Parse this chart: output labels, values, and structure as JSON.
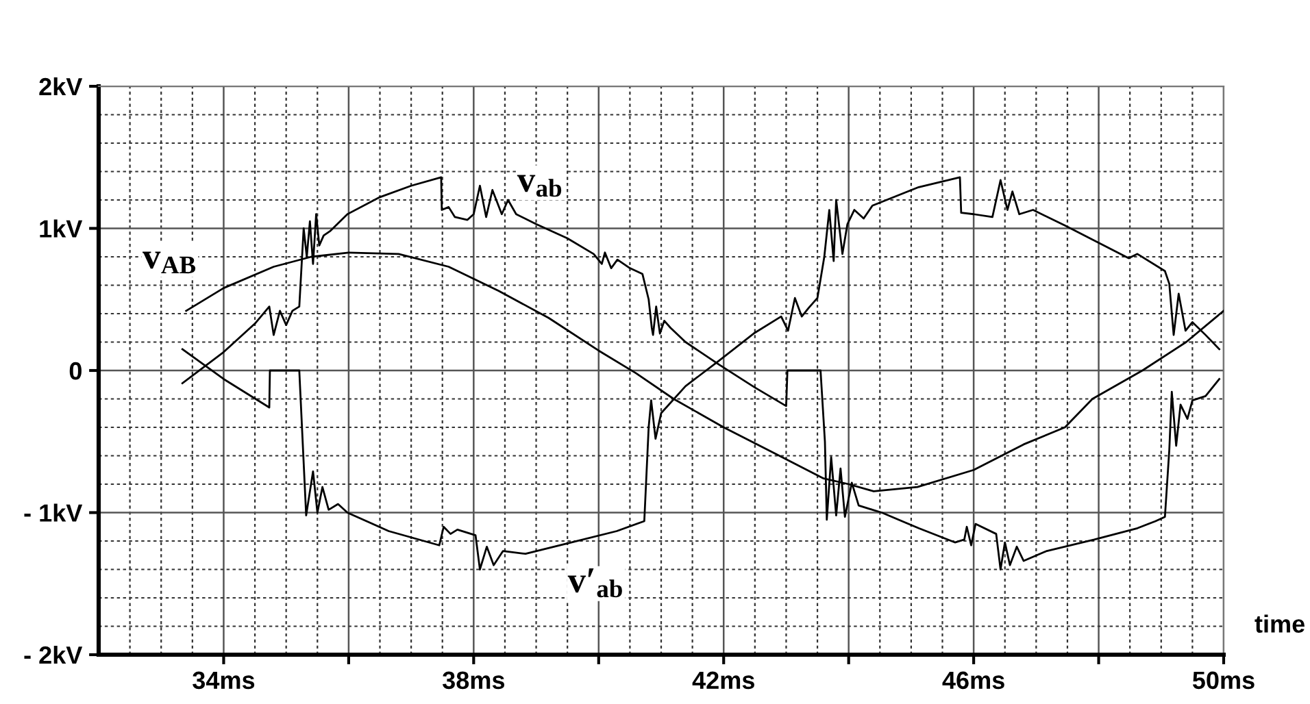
{
  "chart_data": {
    "type": "line",
    "xlabel": "time",
    "xlim": [
      32,
      50
    ],
    "ylim": [
      -2,
      2
    ],
    "xticks": [
      {
        "value": 34,
        "label": "34ms"
      },
      {
        "value": 36,
        "label": null
      },
      {
        "value": 38,
        "label": "38ms"
      },
      {
        "value": 40,
        "label": null
      },
      {
        "value": 42,
        "label": "42ms"
      },
      {
        "value": 44,
        "label": null
      },
      {
        "value": 46,
        "label": "46ms"
      },
      {
        "value": 48,
        "label": null
      },
      {
        "value": 50,
        "label": "50ms"
      }
    ],
    "yticks": [
      {
        "value": -2,
        "label": "- 2kV"
      },
      {
        "value": -1,
        "label": "- 1kV"
      },
      {
        "value": 0,
        "label": "0"
      },
      {
        "value": 1,
        "label": "1kV"
      },
      {
        "value": 2,
        "label": "2kV"
      }
    ],
    "grid": true,
    "marker": "none",
    "line_style": "solid",
    "series": [
      {
        "name": "v$_{AB}$",
        "color": "#000000",
        "x": [
          33.4,
          34.0,
          34.8,
          35.4,
          36.0,
          36.8,
          37.6,
          38.4,
          39.2,
          40.0,
          40.6,
          41.2,
          42.0,
          42.8,
          43.6,
          44.0,
          44.4,
          45.1,
          46.0,
          46.8,
          47.46,
          47.9,
          48.7,
          49.4,
          50.0
        ],
        "values": [
          0.42,
          0.58,
          0.73,
          0.8,
          0.83,
          0.82,
          0.73,
          0.56,
          0.37,
          0.14,
          -0.02,
          -0.2,
          -0.4,
          -0.58,
          -0.76,
          -0.8,
          -0.85,
          -0.82,
          -0.7,
          -0.52,
          -0.4,
          -0.2,
          0.0,
          0.2,
          0.42
        ]
      },
      {
        "name": "v$_{ab}$",
        "color": "#000000",
        "x": [
          33.34,
          34.0,
          34.5,
          34.73,
          34.8,
          34.9,
          35.0,
          35.1,
          35.21,
          35.28,
          35.33,
          35.38,
          35.43,
          35.48,
          35.53,
          35.6,
          35.7,
          35.98,
          36.5,
          37.0,
          37.48,
          37.49,
          37.6,
          37.7,
          37.9,
          38.0,
          38.1,
          38.2,
          38.3,
          38.45,
          38.55,
          38.68,
          39.0,
          39.5,
          39.92,
          40.05,
          40.1,
          40.2,
          40.3,
          40.5,
          40.7,
          40.8,
          40.85,
          40.87,
          40.92,
          40.98,
          41.05,
          41.15,
          41.39,
          41.93,
          42.5,
          43.0,
          43.02,
          43.55,
          43.62,
          43.65,
          43.72,
          43.8,
          43.87,
          43.94,
          44.05,
          44.16,
          44.38,
          44.53,
          45.12,
          45.7,
          45.85,
          45.89,
          45.96,
          46.03,
          46.36,
          46.43,
          46.5,
          46.58,
          46.69,
          46.8,
          47.17,
          47.93,
          48.62,
          48.91,
          49.06,
          49.13,
          49.17,
          49.24,
          49.31,
          49.42,
          49.5,
          49.71,
          49.93
        ],
        "values": [
          -0.09,
          0.13,
          0.33,
          0.45,
          0.25,
          0.42,
          0.32,
          0.42,
          0.45,
          1.0,
          0.8,
          1.05,
          0.75,
          1.1,
          0.88,
          0.95,
          0.98,
          1.1,
          1.22,
          1.3,
          1.36,
          1.13,
          1.15,
          1.08,
          1.06,
          1.1,
          1.3,
          1.08,
          1.27,
          1.1,
          1.2,
          1.1,
          1.03,
          0.93,
          0.82,
          0.75,
          0.83,
          0.72,
          0.78,
          0.72,
          0.68,
          0.5,
          0.3,
          0.25,
          0.45,
          0.26,
          0.35,
          0.3,
          0.2,
          0.04,
          -0.12,
          -0.25,
          0.0,
          0.0,
          -0.5,
          -1.05,
          -0.61,
          -1.02,
          -0.69,
          -1.03,
          -0.79,
          -0.95,
          -0.98,
          -1.0,
          -1.11,
          -1.21,
          -1.19,
          -1.1,
          -1.23,
          -1.08,
          -1.15,
          -1.4,
          -1.21,
          -1.37,
          -1.24,
          -1.34,
          -1.27,
          -1.19,
          -1.11,
          -1.06,
          -1.03,
          -0.56,
          -0.15,
          -0.53,
          -0.24,
          -0.34,
          -0.21,
          -0.18,
          -0.06
        ]
      },
      {
        "name": "v′$_{ab}$",
        "color": "#000000",
        "x": [
          33.34,
          34.0,
          34.73,
          34.74,
          35.21,
          35.32,
          35.43,
          35.5,
          35.58,
          35.68,
          35.83,
          35.98,
          36.64,
          37.45,
          37.52,
          37.63,
          37.74,
          38.03,
          38.1,
          38.21,
          38.32,
          38.47,
          38.83,
          39.56,
          40.29,
          40.73,
          40.8,
          40.84,
          40.91,
          41.0,
          41.39,
          41.93,
          42.48,
          42.92,
          43.03,
          43.14,
          43.25,
          43.36,
          43.5,
          43.61,
          43.69,
          43.76,
          43.8,
          43.9,
          43.98,
          44.09,
          44.24,
          44.38,
          45.12,
          45.78,
          45.8,
          46.0,
          46.3,
          46.43,
          46.54,
          46.62,
          46.73,
          46.95,
          47.46,
          48.48,
          48.62,
          49.06,
          49.13,
          49.2,
          49.28,
          49.39,
          49.5,
          49.71,
          49.93
        ],
        "values": [
          0.15,
          -0.06,
          -0.26,
          0.0,
          0.0,
          -1.02,
          -0.71,
          -1.0,
          -0.82,
          -0.98,
          -0.94,
          -1.0,
          -1.13,
          -1.23,
          -1.1,
          -1.15,
          -1.12,
          -1.16,
          -1.4,
          -1.24,
          -1.37,
          -1.27,
          -1.29,
          -1.21,
          -1.13,
          -1.06,
          -0.4,
          -0.21,
          -0.48,
          -0.3,
          -0.11,
          0.07,
          0.26,
          0.38,
          0.28,
          0.51,
          0.38,
          0.44,
          0.51,
          0.8,
          1.13,
          0.77,
          1.2,
          0.82,
          1.03,
          1.13,
          1.07,
          1.16,
          1.29,
          1.36,
          1.11,
          1.1,
          1.08,
          1.34,
          1.13,
          1.26,
          1.1,
          1.13,
          1.02,
          0.79,
          0.82,
          0.7,
          0.61,
          0.25,
          0.54,
          0.28,
          0.34,
          0.25,
          0.15
        ]
      }
    ]
  }
}
